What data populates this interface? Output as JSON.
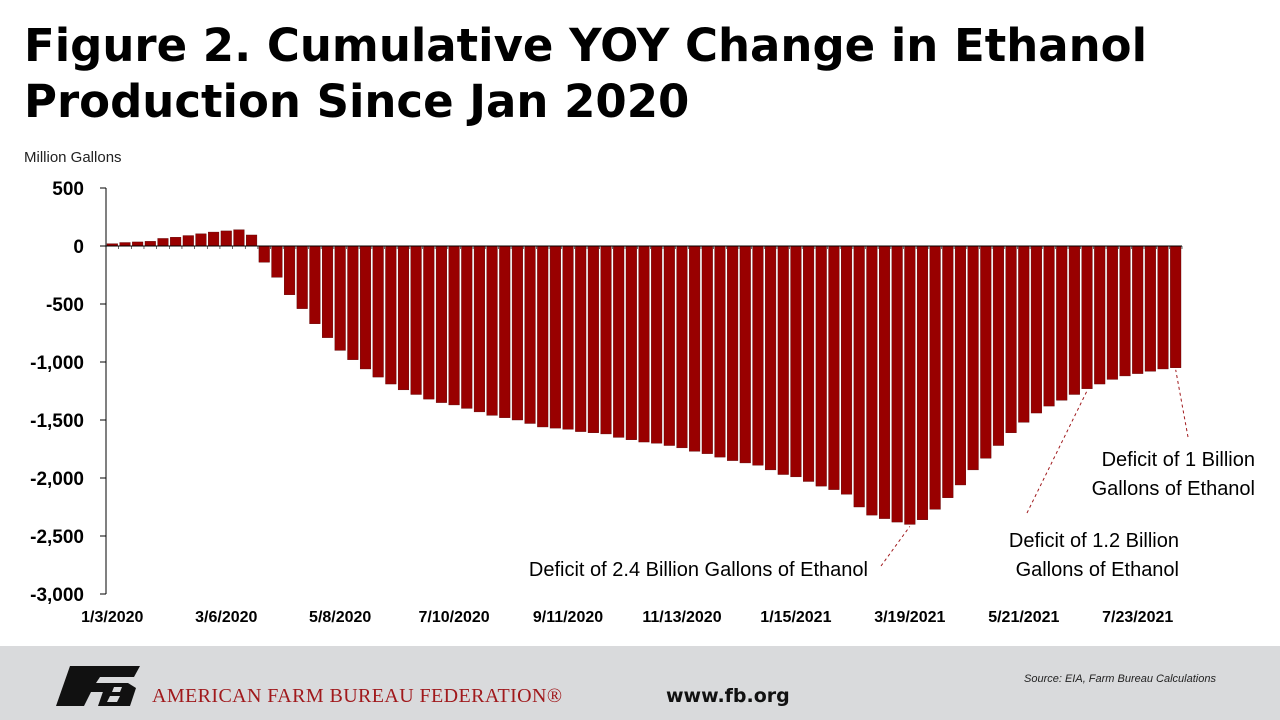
{
  "title_lines": [
    "Figure 2. Cumulative YOY Change in Ethanol",
    "Production Since Jan 2020"
  ],
  "unit_label": "Million Gallons",
  "chart_data": {
    "type": "bar",
    "title": "Figure 2. Cumulative YOY Change in Ethanol Production Since Jan 2020",
    "ylabel": "Million Gallons",
    "xlabel": "",
    "ylim": [
      -3000,
      500
    ],
    "yticks": [
      500,
      0,
      -500,
      -1000,
      -1500,
      -2000,
      -2500,
      -3000
    ],
    "ytick_labels": [
      "500",
      "0",
      "-500",
      "-1,000",
      "-1,500",
      "-2,000",
      "-2,500",
      "-3,000"
    ],
    "grid": false,
    "bar_color": "#990000",
    "categories": [
      "1/3/2020",
      "1/10/2020",
      "1/17/2020",
      "1/24/2020",
      "1/31/2020",
      "2/7/2020",
      "2/14/2020",
      "2/21/2020",
      "2/28/2020",
      "3/6/2020",
      "3/13/2020",
      "3/20/2020",
      "3/27/2020",
      "4/3/2020",
      "4/10/2020",
      "4/17/2020",
      "4/24/2020",
      "5/1/2020",
      "5/8/2020",
      "5/15/2020",
      "5/22/2020",
      "5/29/2020",
      "6/5/2020",
      "6/12/2020",
      "6/19/2020",
      "6/26/2020",
      "7/3/2020",
      "7/10/2020",
      "7/17/2020",
      "7/24/2020",
      "7/31/2020",
      "8/7/2020",
      "8/14/2020",
      "8/21/2020",
      "8/28/2020",
      "9/4/2020",
      "9/11/2020",
      "9/18/2020",
      "9/25/2020",
      "10/2/2020",
      "10/9/2020",
      "10/16/2020",
      "10/23/2020",
      "10/30/2020",
      "11/6/2020",
      "11/13/2020",
      "11/20/2020",
      "11/27/2020",
      "12/4/2020",
      "12/11/2020",
      "12/18/2020",
      "12/25/2020",
      "1/1/2021",
      "1/8/2021",
      "1/15/2021",
      "1/22/2021",
      "1/29/2021",
      "2/5/2021",
      "2/12/2021",
      "2/19/2021",
      "2/26/2021",
      "3/5/2021",
      "3/12/2021",
      "3/19/2021",
      "3/26/2021",
      "4/2/2021",
      "4/9/2021",
      "4/16/2021",
      "4/23/2021",
      "4/30/2021",
      "5/7/2021",
      "5/14/2021",
      "5/21/2021",
      "5/28/2021",
      "6/4/2021",
      "6/11/2021",
      "6/18/2021",
      "6/25/2021",
      "7/2/2021",
      "7/9/2021",
      "7/16/2021",
      "7/23/2021",
      "7/30/2021",
      "8/6/2021",
      "8/13/2021"
    ],
    "tick_labels": [
      "1/3/2020",
      "3/6/2020",
      "5/8/2020",
      "7/10/2020",
      "9/11/2020",
      "11/13/2020",
      "1/15/2021",
      "3/19/2021",
      "5/21/2021",
      "7/23/2021"
    ],
    "values": [
      20,
      30,
      35,
      40,
      65,
      75,
      90,
      105,
      120,
      130,
      140,
      95,
      -140,
      -270,
      -420,
      -540,
      -670,
      -790,
      -900,
      -980,
      -1060,
      -1130,
      -1190,
      -1240,
      -1280,
      -1320,
      -1350,
      -1370,
      -1400,
      -1430,
      -1460,
      -1480,
      -1500,
      -1530,
      -1560,
      -1570,
      -1580,
      -1600,
      -1610,
      -1620,
      -1650,
      -1670,
      -1690,
      -1700,
      -1720,
      -1740,
      -1770,
      -1790,
      -1820,
      -1850,
      -1870,
      -1890,
      -1930,
      -1970,
      -1990,
      -2030,
      -2070,
      -2100,
      -2140,
      -2250,
      -2320,
      -2350,
      -2380,
      -2400,
      -2360,
      -2270,
      -2170,
      -2060,
      -1930,
      -1830,
      -1720,
      -1610,
      -1520,
      -1440,
      -1380,
      -1330,
      -1280,
      -1230,
      -1190,
      -1150,
      -1120,
      -1100,
      -1080,
      -1060,
      -1050
    ],
    "annotations": [
      {
        "lines": [
          "Deficit of 2.4 Billion Gallons of Ethanol"
        ],
        "target": "3/19/2021"
      },
      {
        "lines": [
          "Deficit of 1.2 Billion",
          "Gallons of Ethanol"
        ],
        "target": "6/25/2021"
      },
      {
        "lines": [
          "Deficit of 1 Billion",
          "Gallons of Ethanol"
        ],
        "target": "8/13/2021"
      }
    ]
  },
  "footer": {
    "logo_text": "FB",
    "org_name": "AMERICAN FARM BUREAU FEDERATION®",
    "website": "www.fb.org",
    "source": "Source: EIA, Farm Bureau Calculations",
    "brand_color": "#a0191c"
  }
}
